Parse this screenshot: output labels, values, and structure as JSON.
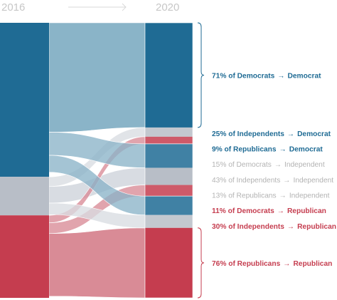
{
  "header": {
    "year_start": "2016",
    "year_end": "2020"
  },
  "colors": {
    "democrat": "#1f6b94",
    "independent": "#b8bec7",
    "republican": "#c53d4f",
    "democrat_flow": "#8ab4c8",
    "independent_flow": "#d8dce2",
    "republican_flow": "#d98b96",
    "muted_text": "#b3b3b3",
    "brace": "#2a7aa6"
  },
  "chart_data": {
    "type": "sankey",
    "stages": [
      "2016",
      "2020"
    ],
    "nodes_2016": [
      {
        "name": "Democrat",
        "share": 0.56
      },
      {
        "name": "Independent",
        "share": 0.14
      },
      {
        "name": "Republican",
        "share": 0.3
      }
    ],
    "nodes_2020": [
      {
        "name": "Democrat",
        "share": 0.44
      },
      {
        "name": "Independent",
        "share": 0.19
      },
      {
        "name": "Republican",
        "share": 0.37
      }
    ],
    "flows": [
      {
        "from": "Democrat",
        "to": "Democrat",
        "share": 0.71,
        "label_pct": "71% of Democrats",
        "label_dest": "Democrat",
        "highlight": true
      },
      {
        "from": "Independent",
        "to": "Democrat",
        "share": 0.25,
        "label_pct": "25% of Independents",
        "label_dest": "Democrat",
        "highlight": true
      },
      {
        "from": "Republican",
        "to": "Democrat",
        "share": 0.09,
        "label_pct": "9% of Republicans",
        "label_dest": "Democrat",
        "highlight": true
      },
      {
        "from": "Democrat",
        "to": "Independent",
        "share": 0.15,
        "label_pct": "15% of Democrats",
        "label_dest": "Independent",
        "highlight": false
      },
      {
        "from": "Independent",
        "to": "Independent",
        "share": 0.43,
        "label_pct": "43% of Independents",
        "label_dest": "Independent",
        "highlight": false
      },
      {
        "from": "Republican",
        "to": "Independent",
        "share": 0.13,
        "label_pct": "13% of Republicans",
        "label_dest": "Independent",
        "highlight": false
      },
      {
        "from": "Democrat",
        "to": "Republican",
        "share": 0.11,
        "label_pct": "11% of Democrats",
        "label_dest": "Republican",
        "highlight": true
      },
      {
        "from": "Independent",
        "to": "Republican",
        "share": 0.3,
        "label_pct": "30% of Independents",
        "label_dest": "Republican",
        "highlight": true
      },
      {
        "from": "Republican",
        "to": "Republican",
        "share": 0.76,
        "label_pct": "76% of Republicans",
        "label_dest": "Republican",
        "highlight": true
      }
    ],
    "arrow_glyph": "→"
  }
}
